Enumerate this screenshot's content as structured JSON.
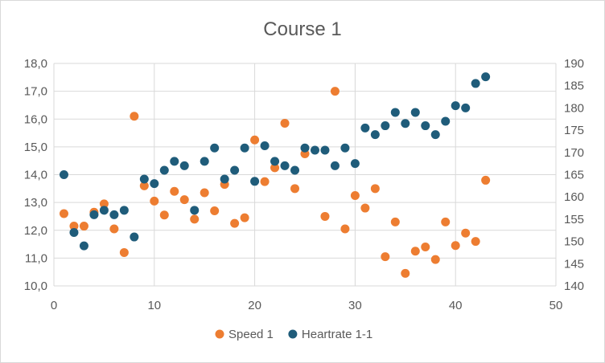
{
  "chart_data": {
    "type": "scatter",
    "title": "Course 1",
    "xlabel": "",
    "ylabel": "",
    "xlim": [
      0,
      50
    ],
    "ylim": [
      10.0,
      18.0
    ],
    "y2lim": [
      140,
      190
    ],
    "grid": true,
    "legend_position": "bottom",
    "x_ticks": [
      "0",
      "10",
      "20",
      "30",
      "40",
      "50"
    ],
    "y_ticks": [
      "10,0",
      "11,0",
      "12,0",
      "13,0",
      "14,0",
      "15,0",
      "16,0",
      "17,0",
      "18,0"
    ],
    "y2_ticks": [
      "140",
      "145",
      "150",
      "155",
      "160",
      "165",
      "170",
      "175",
      "180",
      "185",
      "190"
    ],
    "series": [
      {
        "name": "Speed 1",
        "axis": "left",
        "color": "#ED7D31",
        "points": [
          [
            1,
            12.6
          ],
          [
            2,
            12.15
          ],
          [
            3,
            12.15
          ],
          [
            4,
            12.65
          ],
          [
            5,
            12.95
          ],
          [
            6,
            12.05
          ],
          [
            7,
            11.2
          ],
          [
            8,
            16.1
          ],
          [
            9,
            13.6
          ],
          [
            10,
            13.05
          ],
          [
            11,
            12.55
          ],
          [
            12,
            13.4
          ],
          [
            13,
            13.1
          ],
          [
            14,
            12.4
          ],
          [
            15,
            13.35
          ],
          [
            16,
            12.7
          ],
          [
            17,
            13.65
          ],
          [
            18,
            12.25
          ],
          [
            19,
            12.45
          ],
          [
            20,
            15.25
          ],
          [
            21,
            13.75
          ],
          [
            22,
            14.25
          ],
          [
            23,
            15.85
          ],
          [
            24,
            13.5
          ],
          [
            25,
            14.75
          ],
          [
            27,
            12.5
          ],
          [
            28,
            17.0
          ],
          [
            29,
            12.05
          ],
          [
            30,
            13.25
          ],
          [
            31,
            12.8
          ],
          [
            32,
            13.5
          ],
          [
            33,
            11.05
          ],
          [
            34,
            12.3
          ],
          [
            35,
            10.45
          ],
          [
            36,
            11.25
          ],
          [
            37,
            11.4
          ],
          [
            38,
            10.95
          ],
          [
            39,
            12.3
          ],
          [
            40,
            11.45
          ],
          [
            41,
            11.9
          ],
          [
            42,
            11.6
          ],
          [
            43,
            13.8
          ]
        ]
      },
      {
        "name": "Heartrate 1-1",
        "axis": "right",
        "color": "#1F5C7A",
        "points": [
          [
            1,
            165
          ],
          [
            2,
            152
          ],
          [
            3,
            149
          ],
          [
            4,
            156
          ],
          [
            5,
            157
          ],
          [
            6,
            156
          ],
          [
            7,
            157
          ],
          [
            8,
            151
          ],
          [
            9,
            164
          ],
          [
            10,
            163
          ],
          [
            11,
            166
          ],
          [
            12,
            168
          ],
          [
            13,
            167
          ],
          [
            14,
            157
          ],
          [
            15,
            168
          ],
          [
            16,
            171
          ],
          [
            17,
            164
          ],
          [
            18,
            166
          ],
          [
            19,
            171
          ],
          [
            20,
            163.5
          ],
          [
            21,
            171.5
          ],
          [
            22,
            168
          ],
          [
            23,
            167
          ],
          [
            24,
            166
          ],
          [
            25,
            171
          ],
          [
            26,
            170.5
          ],
          [
            27,
            170.5
          ],
          [
            28,
            167
          ],
          [
            29,
            171
          ],
          [
            30,
            167.5
          ],
          [
            31,
            175.5
          ],
          [
            32,
            174
          ],
          [
            33,
            176
          ],
          [
            34,
            179
          ],
          [
            35,
            176.5
          ],
          [
            36,
            179
          ],
          [
            37,
            176
          ],
          [
            38,
            174
          ],
          [
            39,
            177
          ],
          [
            40,
            180.5
          ],
          [
            41,
            180
          ],
          [
            42,
            185.5
          ],
          [
            43,
            187
          ]
        ]
      }
    ]
  }
}
